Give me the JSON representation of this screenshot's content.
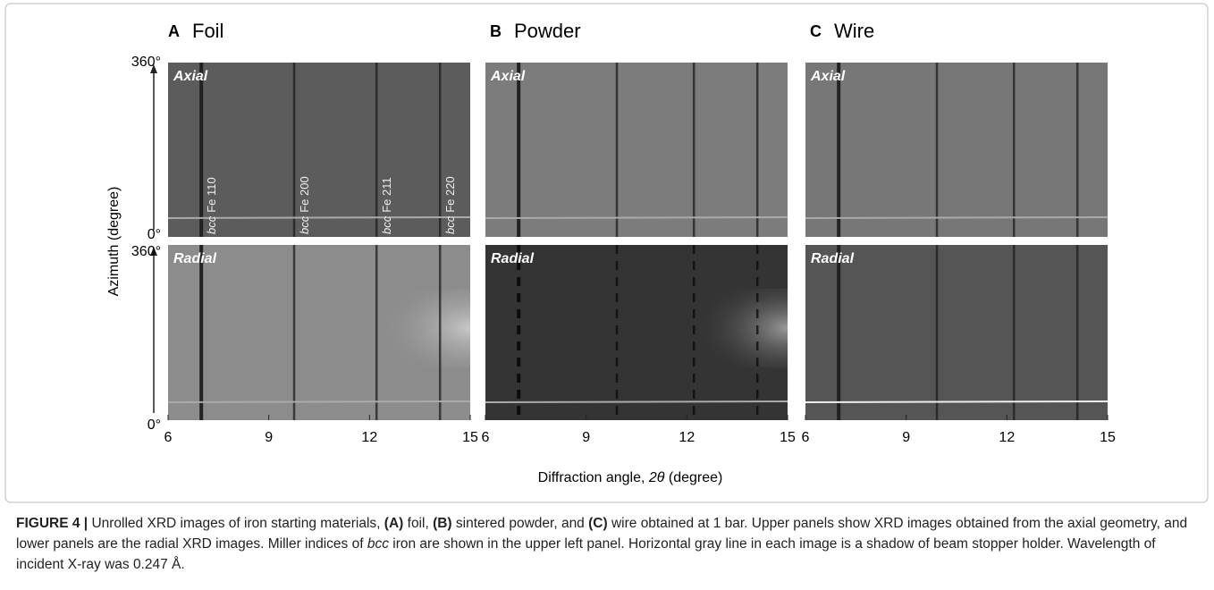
{
  "panels": [
    {
      "letter": "A",
      "title": "Foil",
      "top_label": "Axial",
      "bottom_label": "Radial"
    },
    {
      "letter": "B",
      "title": "Powder",
      "top_label": "Axial",
      "bottom_label": "Radial"
    },
    {
      "letter": "C",
      "title": "Wire",
      "top_label": "Axial",
      "bottom_label": "Radial"
    }
  ],
  "peak_labels": [
    {
      "italic": "bcc",
      "text": "Fe 110"
    },
    {
      "italic": "bcc",
      "text": "Fe 200"
    },
    {
      "italic": "bcc",
      "text": "Fe 211"
    },
    {
      "italic": "bcc",
      "text": "Fe 220"
    }
  ],
  "y_axis": {
    "title": "Azimuth (degree)",
    "top_label": "360°",
    "bottom_label": "0°"
  },
  "x_axis": {
    "title_prefix": "Diffraction angle, ",
    "title_symbol": "2θ",
    "title_suffix": " (degree)",
    "xlim": [
      6,
      15
    ],
    "xticks": [
      6,
      9,
      12,
      15
    ]
  },
  "caption": [
    "FIGURE 4 |",
    " Unrolled XRD images of iron starting materials, ",
    "(A)",
    " foil, ",
    "(B)",
    " sintered powder, and ",
    "(C)",
    " wire obtained at 1 bar. Upper panels show XRD images obtained from the axial geometry, and lower panels are the radial XRD images. Miller indices of ",
    "bcc",
    " iron are shown in the upper left panel. Horizontal gray line in each image is a shadow of beam stopper holder. Wavelength of incident X-ray was 0.247 Å."
  ]
}
